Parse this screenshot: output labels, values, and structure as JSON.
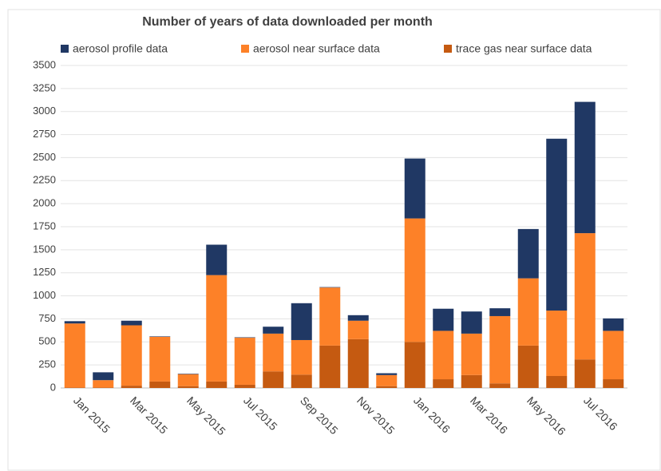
{
  "chart_data": {
    "type": "stacked_bar",
    "title": "Number of years of data downloaded per month",
    "categories": [
      "Jan 2015",
      null,
      "Mar 2015",
      null,
      "May 2015",
      null,
      "Jul 2015",
      null,
      "Sep 2015",
      null,
      "Nov 2015",
      null,
      "Jan 2016",
      null,
      "Mar 2016",
      null,
      "May 2016",
      null,
      "Jul 2016",
      null
    ],
    "series": [
      {
        "name": "aerosol profile data",
        "color": "#203864",
        "values": [
          25,
          85,
          50,
          5,
          5,
          330,
          5,
          75,
          400,
          5,
          60,
          20,
          650,
          240,
          240,
          85,
          535,
          1865,
          1425,
          135
        ]
      },
      {
        "name": "aerosol near surface data",
        "color": "#fd8128",
        "values": [
          695,
          80,
          655,
          485,
          130,
          1155,
          510,
          410,
          375,
          630,
          200,
          120,
          1340,
          525,
          450,
          730,
          730,
          710,
          1370,
          525
        ]
      },
      {
        "name": "trace gas near surface data",
        "color": "#c55a11",
        "values": [
          5,
          5,
          25,
          70,
          20,
          70,
          35,
          180,
          145,
          460,
          530,
          20,
          500,
          95,
          140,
          50,
          460,
          130,
          310,
          95
        ]
      }
    ],
    "ylim": [
      0,
      3500
    ],
    "yticks": [
      0,
      250,
      500,
      750,
      1000,
      1250,
      1500,
      1750,
      2000,
      2250,
      2500,
      2750,
      3000,
      3250,
      3500
    ],
    "grid": true
  }
}
